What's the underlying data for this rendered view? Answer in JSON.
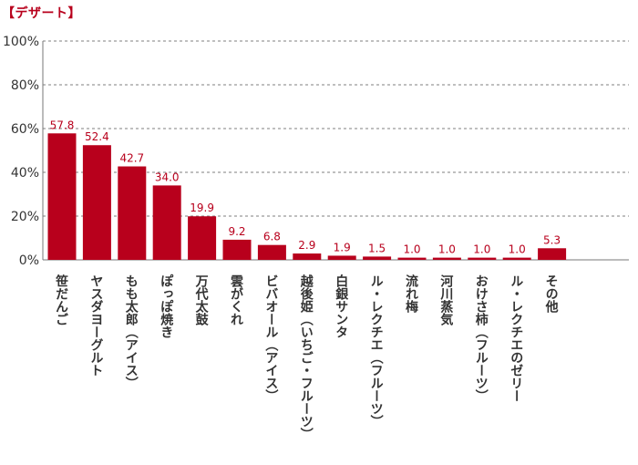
{
  "page": {
    "title": "【デザート】"
  },
  "colors": {
    "bar": "#b8001c",
    "title": "#b8001c",
    "value_label": "#b8001c",
    "grid": "#555555",
    "axis": "#777777"
  },
  "chart_data": {
    "type": "bar",
    "title": "【デザート】",
    "xlabel": "",
    "ylabel": "",
    "ylim": [
      0,
      100
    ],
    "y_ticks": [
      "0%",
      "20%",
      "40%",
      "60%",
      "80%",
      "100%"
    ],
    "grid": "dashed horizontal",
    "categories": [
      "笹だんご",
      "ヤスダヨーグルト",
      "もも太郎（アイス）",
      "ぽっぽ焼き",
      "万代太鼓",
      "雲がくれ",
      "ビバオール（アイス）",
      "越後姫（いちご・フルーツ）",
      "白銀サンタ",
      "ル・レクチエ（フルーツ）",
      "流れ梅",
      "河川蒸気",
      "おけさ柿（フルーツ）",
      "ル・レクチエのゼリー",
      "その他"
    ],
    "values": [
      57.8,
      52.4,
      42.7,
      34.0,
      19.9,
      9.2,
      6.8,
      2.9,
      1.9,
      1.5,
      1.0,
      1.0,
      1.0,
      1.0,
      5.3
    ],
    "value_labels": [
      "57.8",
      "52.4",
      "42.7",
      "34.0",
      "19.9",
      "9.2",
      "6.8",
      "2.9",
      "1.9",
      "1.5",
      "1.0",
      "1.0",
      "1.0",
      "1.0",
      "5.3"
    ]
  }
}
